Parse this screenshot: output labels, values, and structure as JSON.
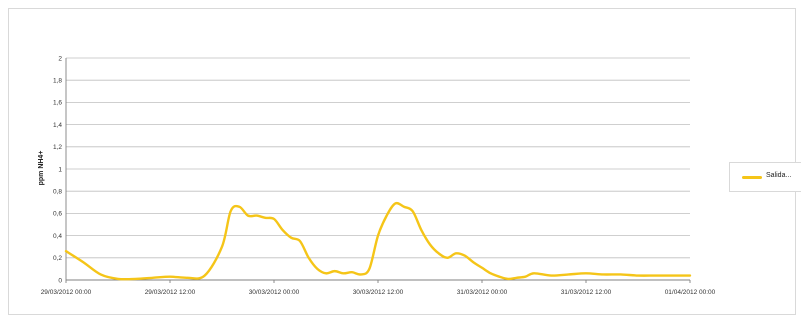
{
  "chart_data": {
    "type": "line",
    "ylabel": "ppm NH4+",
    "ylim": [
      0,
      2
    ],
    "yticks": [
      "0",
      "0,2",
      "0,4",
      "0,6",
      "0,8",
      "1",
      "1,2",
      "1,4",
      "1,6",
      "1,8",
      "2"
    ],
    "xlim": [
      "29/03/2012 00:00",
      "01/04/2012 00:00"
    ],
    "xticks": [
      "29/03/2012 00:00",
      "29/03/2012 12:00",
      "30/03/2012 00:00",
      "30/03/2012 12:00",
      "31/03/2012 00:00",
      "31/03/2012 12:00",
      "01/04/2012 00:00"
    ],
    "grid": true,
    "legend_position": "right",
    "series": [
      {
        "name": "Salida...",
        "color": "#f5c518",
        "x": [
          "29/03/2012 00:00",
          "29/03/2012 02:00",
          "29/03/2012 04:00",
          "29/03/2012 06:00",
          "29/03/2012 08:00",
          "29/03/2012 10:00",
          "29/03/2012 12:00",
          "29/03/2012 14:00",
          "29/03/2012 16:00",
          "29/03/2012 18:00",
          "29/03/2012 19:00",
          "29/03/2012 20:00",
          "29/03/2012 21:00",
          "29/03/2012 22:00",
          "29/03/2012 23:00",
          "30/03/2012 00:00",
          "30/03/2012 01:00",
          "30/03/2012 02:00",
          "30/03/2012 03:00",
          "30/03/2012 04:00",
          "30/03/2012 05:00",
          "30/03/2012 06:00",
          "30/03/2012 07:00",
          "30/03/2012 08:00",
          "30/03/2012 09:00",
          "30/03/2012 10:00",
          "30/03/2012 11:00",
          "30/03/2012 12:00",
          "30/03/2012 13:00",
          "30/03/2012 14:00",
          "30/03/2012 15:00",
          "30/03/2012 16:00",
          "30/03/2012 17:00",
          "30/03/2012 18:00",
          "30/03/2012 19:00",
          "30/03/2012 20:00",
          "30/03/2012 21:00",
          "30/03/2012 22:00",
          "30/03/2012 23:00",
          "31/03/2012 00:00",
          "31/03/2012 01:00",
          "31/03/2012 02:00",
          "31/03/2012 03:00",
          "31/03/2012 04:00",
          "31/03/2012 05:00",
          "31/03/2012 06:00",
          "31/03/2012 08:00",
          "31/03/2012 10:00",
          "31/03/2012 12:00",
          "31/03/2012 14:00",
          "31/03/2012 16:00",
          "31/03/2012 18:00",
          "31/03/2012 20:00",
          "31/03/2012 22:00",
          "01/04/2012 00:00"
        ],
        "y": [
          0.26,
          0.16,
          0.05,
          0.01,
          0.01,
          0.02,
          0.03,
          0.02,
          0.04,
          0.3,
          0.62,
          0.66,
          0.58,
          0.58,
          0.56,
          0.55,
          0.45,
          0.38,
          0.35,
          0.2,
          0.1,
          0.06,
          0.08,
          0.06,
          0.07,
          0.05,
          0.1,
          0.4,
          0.58,
          0.69,
          0.66,
          0.62,
          0.45,
          0.32,
          0.24,
          0.2,
          0.24,
          0.22,
          0.16,
          0.11,
          0.06,
          0.03,
          0.01,
          0.02,
          0.03,
          0.06,
          0.04,
          0.05,
          0.06,
          0.05,
          0.05,
          0.04,
          0.04,
          0.04,
          0.04
        ]
      }
    ]
  }
}
